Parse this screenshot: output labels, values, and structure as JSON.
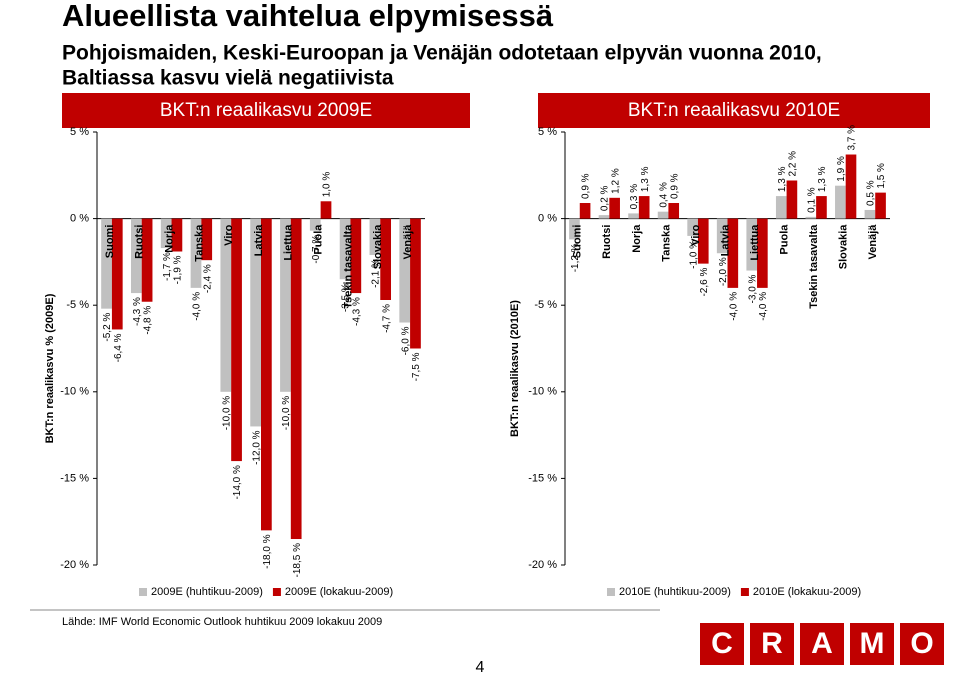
{
  "header": {
    "title": "Alueellista vaihtelua elpymisessä",
    "subtitle": [
      "Pohjoismaiden, Keski-Euroopan ja Venäjän odotetaan elpyvän vuonna 2010,",
      "Baltiassa kasvu vielä negatiivista"
    ]
  },
  "chart_data": [
    {
      "type": "bar",
      "title": "BKT:n reaalikasvu 2009E",
      "y_label": "BKT:n reaalikasvu % (2009E)",
      "categories": [
        "Suomi",
        "Ruotsi",
        "Norja",
        "Tanska",
        "Viro",
        "Latvia",
        "Liettua",
        "Puola",
        "Tsekin tasavalta",
        "Slovakia",
        "Venäjä"
      ],
      "series": [
        {
          "name": "2009E (huhtikuu-2009)",
          "color": "#c0c0c0",
          "values": [
            -5.2,
            -4.3,
            -1.7,
            -4.0,
            -10.0,
            -12.0,
            -10.0,
            -0.7,
            -3.5,
            -2.1,
            -6.0
          ],
          "value_labels": [
            "-5,2 %",
            "-4,3 %",
            "-1,7 %",
            "-4,0 %",
            "-10,0 %",
            "-12,0 %",
            "-10,0 %",
            "-0,7 %",
            "-3,5 %",
            "-2,1 %",
            "-6,0 %"
          ]
        },
        {
          "name": "2009E (lokakuu-2009)",
          "color": "#c00000",
          "values": [
            -6.4,
            -4.8,
            -1.9,
            -2.4,
            -14.0,
            -18.0,
            -18.5,
            1.0,
            -4.3,
            -4.7,
            -7.5
          ],
          "value_labels": [
            "-6,4 %",
            "-4,8 %",
            "-1,9 %",
            "-2,4 %",
            "-14,0 %",
            "-18,0 %",
            "-18,5 %",
            "1,0 %",
            "-4,3 %",
            "-4,7 %",
            "-7,5 %"
          ]
        }
      ],
      "ylim": [
        -20,
        5
      ],
      "yticks": [
        {
          "value": 5,
          "label": "5 %"
        },
        {
          "value": 0,
          "label": "0 %"
        },
        {
          "value": -5,
          "label": "-5 %"
        },
        {
          "value": -10,
          "label": "-10 %"
        },
        {
          "value": -15,
          "label": "-15 %"
        },
        {
          "value": -20,
          "label": "-20 %"
        }
      ],
      "legend": "bottom"
    },
    {
      "type": "bar",
      "title": "BKT:n reaalikasvu 2010E",
      "y_label": "BKT:n reaalikasvu (2010E)",
      "categories": [
        "Suomi",
        "Ruotsi",
        "Norja",
        "Tanska",
        "Viro",
        "Latvia",
        "Liettua",
        "Puola",
        "Tsekin tasavalta",
        "Slovakia",
        "Venäjä"
      ],
      "series": [
        {
          "name": "2010E (huhtikuu-2009)",
          "color": "#c0c0c0",
          "values": [
            -1.2,
            0.2,
            0.3,
            0.4,
            -1.0,
            -2.0,
            -3.0,
            1.3,
            0.1,
            1.9,
            0.5
          ],
          "value_labels": [
            "-1,2 %",
            "0,2 %",
            "0,3 %",
            "0,4 %",
            "-1,0 %",
            "-2,0 %",
            "-3,0 %",
            "1,3 %",
            "0,1 %",
            "1,9 %",
            "0,5 %"
          ]
        },
        {
          "name": "2010E (lokakuu-2009)",
          "color": "#c00000",
          "values": [
            0.9,
            1.2,
            1.3,
            0.9,
            -2.6,
            -4.0,
            -4.0,
            2.2,
            1.3,
            3.7,
            1.5
          ],
          "value_labels": [
            "0,9 %",
            "1,2 %",
            "1,3 %",
            "0,9 %",
            "-2,6 %",
            "-4,0 %",
            "-4,0 %",
            "2,2 %",
            "1,3 %",
            "3,7 %",
            "1,5 %"
          ]
        }
      ],
      "ylim": [
        -20,
        5
      ],
      "yticks": [
        {
          "value": 5,
          "label": "5 %"
        },
        {
          "value": 0,
          "label": "0 %"
        },
        {
          "value": -5,
          "label": "-5 %"
        },
        {
          "value": -10,
          "label": "-10 %"
        },
        {
          "value": -15,
          "label": "-15 %"
        },
        {
          "value": -20,
          "label": "-20 %"
        }
      ],
      "legend": "bottom"
    }
  ],
  "footer": {
    "source": "Lähde: IMF World Economic Outlook huhtikuu 2009  lokakuu 2009",
    "page": "4",
    "logo": [
      "C",
      "R",
      "A",
      "M",
      "O"
    ]
  }
}
